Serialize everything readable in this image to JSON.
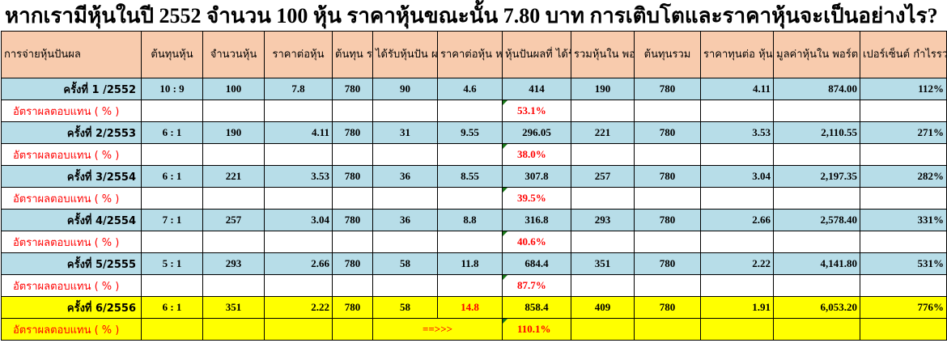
{
  "title": "หากเรามีหุ้นในปี 2552 จำนวน 100 หุ้น ราคาหุ้นขณะนั้น 7.80 บาท การเติบโตและราคาหุ้นจะเป็นอย่างไร?",
  "headers": [
    "การจ่ายหุ้นปันผล",
    "ต้นทุนหุ้น",
    "จำนวนหุ้น",
    "ราคาต่อหุ้น",
    "ต้นทุน รวม",
    "ได้รับหุ้นปัน ผล (หุ้น)",
    "ราคาต่อหุ้น หลัง XD",
    "หุ้นปันผลที่ ได้รับ(บาท)",
    "รวมหุ้นใน พอร์ต",
    "ต้นทุนรวม",
    "ราคาทุนต่อ หุ้น(ปัจจุบัน)",
    "มูลค่าหุ้นใน พอร์ต",
    "เปอร์เซ็นต์ กำไรรวม"
  ],
  "return_label": "อัตราผลตอบแทน ( % )",
  "arrow_text": "==>>>",
  "rows": [
    {
      "label": "ครั้งที่ 1 /2552",
      "ratio": "10 : 9",
      "shares": "100",
      "price": "7.8",
      "total_cost": "780",
      "dividend_shares": "90",
      "price_after_xd": "4.6",
      "dividend_value": "414",
      "port_shares": "190",
      "total_cost2": "780",
      "cost_per_share": "4.11",
      "port_value": "874.00",
      "profit_pct": "112%",
      "return": "53.1%"
    },
    {
      "label": "ครั้งที่ 2/2553",
      "ratio": "6 : 1",
      "shares": "190",
      "price": "4.11",
      "total_cost": "780",
      "dividend_shares": "31",
      "price_after_xd": "9.55",
      "dividend_value": "296.05",
      "port_shares": "221",
      "total_cost2": "780",
      "cost_per_share": "3.53",
      "port_value": "2,110.55",
      "profit_pct": "271%",
      "return": "38.0%"
    },
    {
      "label": "ครั้งที่ 3/2554",
      "ratio": "6 : 1",
      "shares": "221",
      "price": "3.53",
      "total_cost": "780",
      "dividend_shares": "36",
      "price_after_xd": "8.55",
      "dividend_value": "307.8",
      "port_shares": "257",
      "total_cost2": "780",
      "cost_per_share": "3.04",
      "port_value": "2,197.35",
      "profit_pct": "282%",
      "return": "39.5%"
    },
    {
      "label": "ครั้งที่ 4/2554",
      "ratio": "7 : 1",
      "shares": "257",
      "price": "3.04",
      "total_cost": "780",
      "dividend_shares": "36",
      "price_after_xd": "8.8",
      "dividend_value": "316.8",
      "port_shares": "293",
      "total_cost2": "780",
      "cost_per_share": "2.66",
      "port_value": "2,578.40",
      "profit_pct": "331%",
      "return": "40.6%"
    },
    {
      "label": "ครั้งที่ 5/2555",
      "ratio": "5 : 1",
      "shares": "293",
      "price": "2.66",
      "total_cost": "780",
      "dividend_shares": "58",
      "price_after_xd": "11.8",
      "dividend_value": "684.4",
      "port_shares": "351",
      "total_cost2": "780",
      "cost_per_share": "2.22",
      "port_value": "4,141.80",
      "profit_pct": "531%",
      "return": "87.7%"
    },
    {
      "label": "ครั้งที่ 6/2556",
      "ratio": "6 : 1",
      "shares": "351",
      "price": "2.22",
      "total_cost": "780",
      "dividend_shares": "58",
      "price_after_xd": "14.8",
      "dividend_value": "858.4",
      "port_shares": "409",
      "total_cost2": "780",
      "cost_per_share": "1.91",
      "port_value": "6,053.20",
      "profit_pct": "776%",
      "return": "110.1%"
    }
  ],
  "colors": {
    "header_bg": "#f8cbad",
    "row_bg": "#b7dde8",
    "highlight_bg": "#ffff00",
    "return_text": "#ff0000"
  }
}
